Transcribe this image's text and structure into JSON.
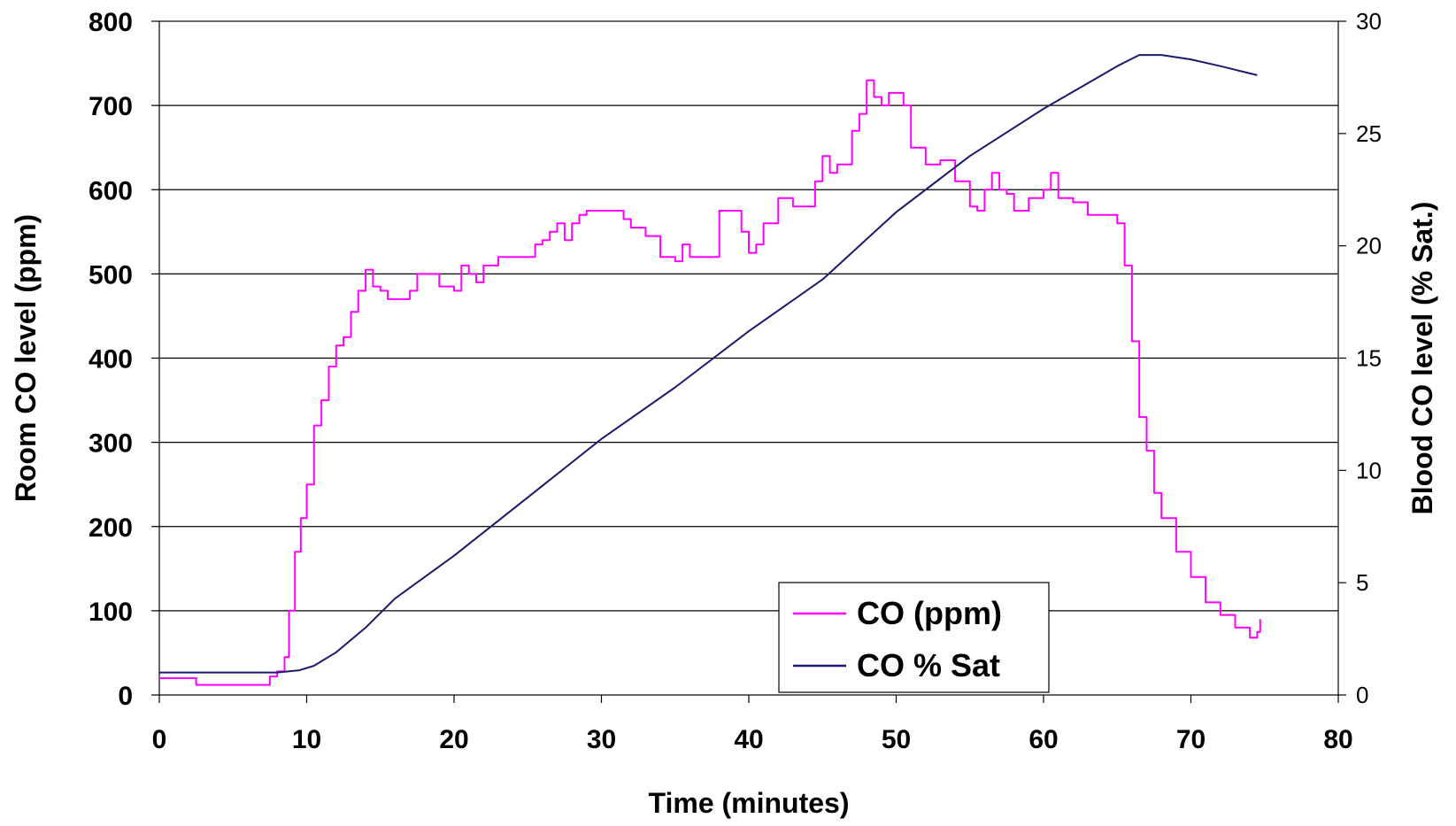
{
  "chart_data": {
    "type": "line",
    "xlabel": "Time (minutes)",
    "ylabel_left": "Room CO level (ppm)",
    "ylabel_right": "Blood CO level (% Sat.)",
    "xlim": [
      0,
      80
    ],
    "ylim_left": [
      0,
      800
    ],
    "ylim_right": [
      0,
      30
    ],
    "xticks": [
      0,
      10,
      20,
      30,
      40,
      50,
      60,
      70,
      80
    ],
    "yticks_left": [
      0,
      100,
      200,
      300,
      400,
      500,
      600,
      700,
      800
    ],
    "yticks_right": [
      0,
      5,
      10,
      15,
      20,
      25,
      30
    ],
    "grid": "horizontal",
    "legend_position": "bottom-right",
    "series": [
      {
        "name": "CO (ppm)",
        "axis": "left",
        "color": "#ff00ff",
        "points": [
          [
            0,
            20
          ],
          [
            2.5,
            20
          ],
          [
            2.5,
            12
          ],
          [
            7,
            12
          ],
          [
            7.5,
            22
          ],
          [
            8,
            28
          ],
          [
            8.5,
            45
          ],
          [
            8.8,
            100
          ],
          [
            9.2,
            170
          ],
          [
            9.6,
            210
          ],
          [
            10,
            250
          ],
          [
            10.5,
            320
          ],
          [
            11,
            350
          ],
          [
            11.5,
            390
          ],
          [
            12,
            415
          ],
          [
            12.5,
            425
          ],
          [
            13,
            455
          ],
          [
            13.5,
            480
          ],
          [
            14,
            505
          ],
          [
            14.5,
            485
          ],
          [
            15,
            480
          ],
          [
            15.5,
            470
          ],
          [
            16,
            470
          ],
          [
            17,
            480
          ],
          [
            17.5,
            500
          ],
          [
            18.5,
            500
          ],
          [
            19,
            485
          ],
          [
            20,
            480
          ],
          [
            20.5,
            510
          ],
          [
            21,
            500
          ],
          [
            21.5,
            490
          ],
          [
            22,
            510
          ],
          [
            23,
            520
          ],
          [
            25,
            520
          ],
          [
            25.5,
            535
          ],
          [
            26,
            540
          ],
          [
            26.5,
            550
          ],
          [
            27,
            560
          ],
          [
            27.5,
            540
          ],
          [
            28,
            560
          ],
          [
            28.5,
            570
          ],
          [
            29,
            575
          ],
          [
            31,
            575
          ],
          [
            31.5,
            565
          ],
          [
            32,
            555
          ],
          [
            33,
            545
          ],
          [
            34,
            520
          ],
          [
            35,
            515
          ],
          [
            35.5,
            535
          ],
          [
            36,
            520
          ],
          [
            37,
            520
          ],
          [
            38,
            575
          ],
          [
            39,
            575
          ],
          [
            39.5,
            550
          ],
          [
            40,
            525
          ],
          [
            40.5,
            535
          ],
          [
            41,
            560
          ],
          [
            42,
            590
          ],
          [
            43,
            580
          ],
          [
            44,
            580
          ],
          [
            44.5,
            610
          ],
          [
            45,
            640
          ],
          [
            45.5,
            620
          ],
          [
            46,
            630
          ],
          [
            47,
            670
          ],
          [
            47.5,
            690
          ],
          [
            48,
            730
          ],
          [
            48.5,
            710
          ],
          [
            49,
            700
          ],
          [
            49.5,
            715
          ],
          [
            50,
            715
          ],
          [
            50.5,
            700
          ],
          [
            51,
            650
          ],
          [
            52,
            630
          ],
          [
            53,
            635
          ],
          [
            54,
            610
          ],
          [
            55,
            580
          ],
          [
            55.5,
            575
          ],
          [
            56,
            600
          ],
          [
            56.5,
            620
          ],
          [
            57,
            600
          ],
          [
            57.5,
            595
          ],
          [
            58,
            575
          ],
          [
            59,
            590
          ],
          [
            60,
            600
          ],
          [
            60.5,
            620
          ],
          [
            61,
            590
          ],
          [
            62,
            585
          ],
          [
            63,
            570
          ],
          [
            64,
            570
          ],
          [
            65,
            560
          ],
          [
            65.5,
            510
          ],
          [
            66,
            420
          ],
          [
            66.5,
            330
          ],
          [
            67,
            290
          ],
          [
            67.5,
            240
          ],
          [
            68,
            210
          ],
          [
            69,
            170
          ],
          [
            70,
            140
          ],
          [
            71,
            110
          ],
          [
            72,
            95
          ],
          [
            73,
            80
          ],
          [
            74,
            68
          ],
          [
            74.5,
            75
          ],
          [
            74.7,
            90
          ]
        ]
      },
      {
        "name": "CO % Sat",
        "axis": "right",
        "color": "#1a1a6e",
        "points": [
          [
            0,
            1.0
          ],
          [
            8,
            1.0
          ],
          [
            9.5,
            1.1
          ],
          [
            10.5,
            1.3
          ],
          [
            12,
            1.9
          ],
          [
            14,
            3.0
          ],
          [
            16,
            4.3
          ],
          [
            20,
            6.2
          ],
          [
            25,
            8.8
          ],
          [
            30,
            11.4
          ],
          [
            35,
            13.7
          ],
          [
            40,
            16.2
          ],
          [
            45,
            18.5
          ],
          [
            50,
            21.5
          ],
          [
            55,
            24.0
          ],
          [
            60,
            26.1
          ],
          [
            65,
            28.0
          ],
          [
            66.5,
            28.5
          ],
          [
            68,
            28.5
          ],
          [
            70,
            28.3
          ],
          [
            72,
            28.0
          ],
          [
            74.5,
            27.6
          ]
        ]
      }
    ]
  }
}
